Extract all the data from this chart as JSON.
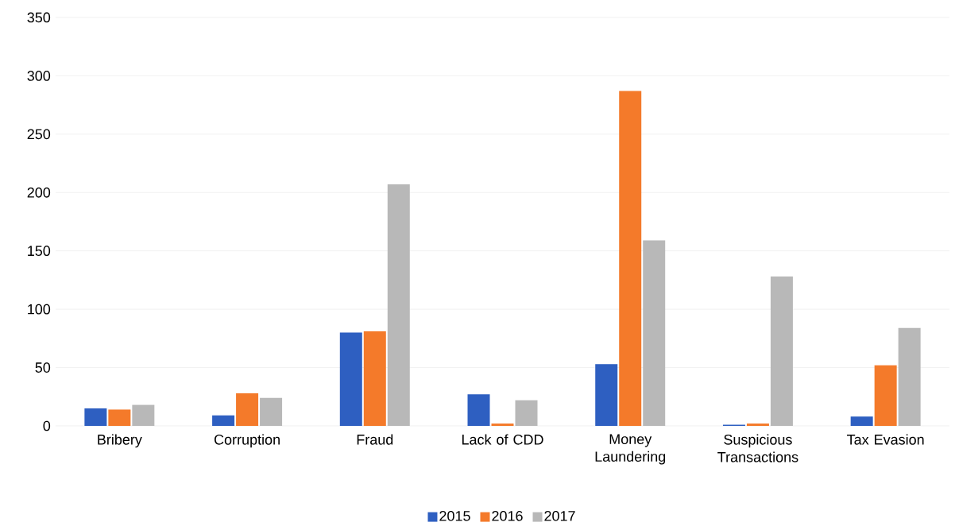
{
  "chart_data": {
    "type": "bar",
    "categories": [
      "Bribery",
      "Corruption",
      "Fraud",
      "Lack of CDD",
      "Money Laundering",
      "Suspicious Transactions",
      "Tax Evasion"
    ],
    "series": [
      {
        "name": "2015",
        "color": "#2e5fc1",
        "values": [
          15,
          9,
          80,
          27,
          53,
          1,
          8
        ]
      },
      {
        "name": "2016",
        "color": "#f47a2a",
        "values": [
          14,
          28,
          81,
          2,
          287,
          2,
          52
        ]
      },
      {
        "name": "2017",
        "color": "#b8b8b8",
        "values": [
          18,
          24,
          207,
          22,
          159,
          128,
          84
        ]
      }
    ],
    "ylim": [
      0,
      350
    ],
    "yticks": [
      0,
      50,
      100,
      150,
      200,
      250,
      300,
      350
    ],
    "grid": "y",
    "legend": "bottom"
  }
}
